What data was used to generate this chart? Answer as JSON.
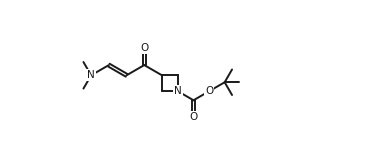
{
  "bg_color": "#ffffff",
  "line_color": "#1a1a1a",
  "line_width": 1.4,
  "figsize": [
    3.69,
    1.66
  ],
  "dpi": 100,
  "xlim": [
    0,
    10.0
  ],
  "ylim": [
    0.0,
    4.5
  ]
}
